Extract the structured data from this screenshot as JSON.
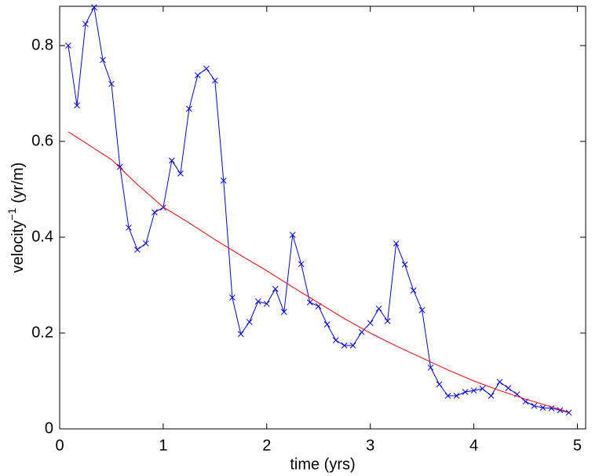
{
  "chart_data": {
    "type": "line",
    "xlabel": "time (yrs)",
    "ylabel": {
      "base": "velocity",
      "superscript": "−1",
      "unit": "(yr/m)"
    },
    "xlim": [
      0,
      5.08
    ],
    "xticks": [
      0,
      1,
      2,
      3,
      4,
      5
    ],
    "ylim": [
      0,
      0.882
    ],
    "yticks": [
      0,
      0.2,
      0.4,
      0.6,
      0.8
    ],
    "series": [
      {
        "color": "#0000ff",
        "marker": "x",
        "x": [
          0.083,
          0.167,
          0.25,
          0.333,
          0.417,
          0.5,
          0.583,
          0.667,
          0.75,
          0.833,
          0.917,
          1.0,
          1.083,
          1.167,
          1.25,
          1.333,
          1.417,
          1.5,
          1.583,
          1.667,
          1.75,
          1.833,
          1.917,
          2.0,
          2.083,
          2.167,
          2.25,
          2.333,
          2.417,
          2.5,
          2.583,
          2.667,
          2.75,
          2.833,
          2.917,
          3.0,
          3.083,
          3.167,
          3.25,
          3.333,
          3.417,
          3.5,
          3.583,
          3.667,
          3.75,
          3.833,
          3.917,
          4.0,
          4.083,
          4.167,
          4.25,
          4.333,
          4.417,
          4.5,
          4.583,
          4.667,
          4.75,
          4.833,
          4.917
        ],
        "values": [
          0.8,
          0.675,
          0.845,
          0.88,
          0.77,
          0.72,
          0.547,
          0.42,
          0.374,
          0.387,
          0.452,
          0.462,
          0.56,
          0.533,
          0.668,
          0.738,
          0.752,
          0.727,
          0.518,
          0.274,
          0.198,
          0.223,
          0.266,
          0.261,
          0.292,
          0.244,
          0.405,
          0.344,
          0.264,
          0.256,
          0.218,
          0.185,
          0.174,
          0.174,
          0.202,
          0.221,
          0.251,
          0.225,
          0.387,
          0.343,
          0.289,
          0.248,
          0.128,
          0.093,
          0.069,
          0.069,
          0.077,
          0.08,
          0.084,
          0.069,
          0.098,
          0.085,
          0.072,
          0.057,
          0.048,
          0.044,
          0.043,
          0.039,
          0.034
        ]
      },
      {
        "color": "#ff0000",
        "x": [
          0.083,
          0.25,
          0.5,
          0.75,
          1.0,
          1.25,
          1.5,
          1.75,
          2.0,
          2.25,
          2.5,
          2.75,
          3.0,
          3.25,
          3.5,
          3.75,
          4.0,
          4.25,
          4.5,
          4.75,
          4.917
        ],
        "values": [
          0.62,
          0.597,
          0.562,
          0.51,
          0.463,
          0.43,
          0.395,
          0.362,
          0.33,
          0.296,
          0.263,
          0.23,
          0.2,
          0.173,
          0.148,
          0.123,
          0.1,
          0.08,
          0.062,
          0.046,
          0.035
        ]
      }
    ]
  }
}
